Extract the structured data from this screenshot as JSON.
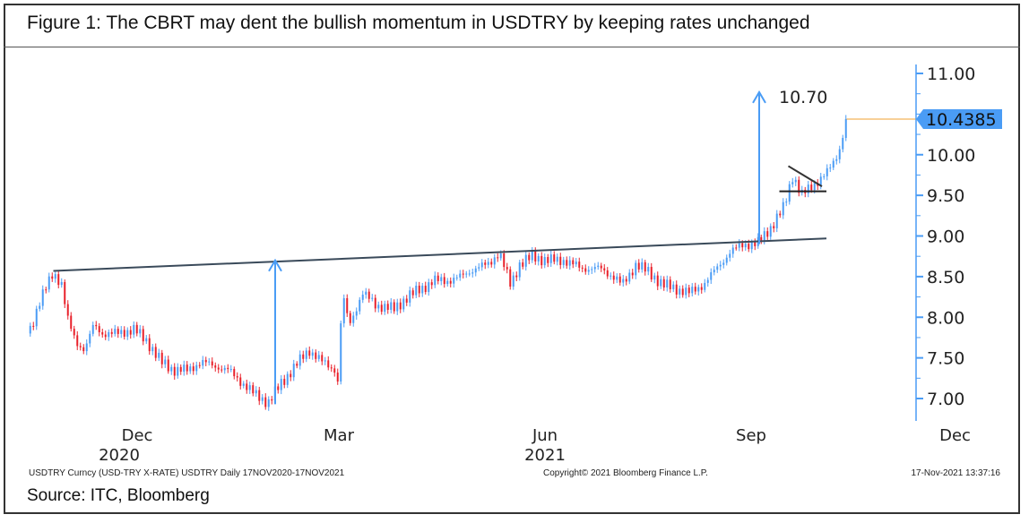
{
  "title": "Figure 1: The CBRT may dent the bullish momentum in USDTRY by keeping rates unchanged",
  "source": "Source: ITC, Bloomberg",
  "footer": {
    "left": "USDTRY Curncy (USD-TRY X-RATE) USDTRY  Daily 17NOV2020-17NOV2021",
    "center": "Copyright© 2021 Bloomberg Finance L.P.",
    "right": "17-Nov-2021 13:37:16"
  },
  "colors": {
    "up": "#4a9cf5",
    "down": "#e8202a",
    "axis": "#4a9cf5",
    "trend": "#3a4a5a",
    "last": "#f0a030",
    "badge": "#4a9cf5"
  },
  "chart_data": {
    "type": "candlestick",
    "title": "USDTRY daily",
    "xlabel": "",
    "ylabel": "",
    "ylim": [
      6.75,
      11.1
    ],
    "xlim_days": [
      0,
      365
    ],
    "y_ticks": [
      "7.00",
      "7.50",
      "8.00",
      "8.50",
      "9.00",
      "9.50",
      "10.00",
      "11.00"
    ],
    "y_tick_values": [
      7.0,
      7.5,
      8.0,
      8.5,
      9.0,
      9.5,
      10.0,
      11.0
    ],
    "x_ticks": [
      {
        "label": "Dec",
        "day": 14
      },
      {
        "label": "Mar",
        "day": 104
      },
      {
        "label": "Jun",
        "day": 196
      },
      {
        "label": "Sep",
        "day": 288
      },
      {
        "label": "Dec",
        "day": 379
      }
    ],
    "x_year_labels": [
      {
        "label": "2020",
        "day": 6
      },
      {
        "label": "2021",
        "day": 196
      }
    ],
    "last_price": 10.4385,
    "last_price_label": "10.4385",
    "target_label": "10.70",
    "series": [
      [
        0,
        7.8
      ],
      [
        5,
        8.2
      ],
      [
        11,
        8.55
      ],
      [
        15,
        8.4
      ],
      [
        17,
        8.0
      ],
      [
        21,
        7.7
      ],
      [
        25,
        7.6
      ],
      [
        29,
        7.9
      ],
      [
        33,
        7.8
      ],
      [
        39,
        7.8
      ],
      [
        47,
        7.85
      ],
      [
        53,
        7.7
      ],
      [
        59,
        7.45
      ],
      [
        65,
        7.35
      ],
      [
        71,
        7.35
      ],
      [
        77,
        7.45
      ],
      [
        83,
        7.4
      ],
      [
        89,
        7.35
      ],
      [
        95,
        7.2
      ],
      [
        101,
        7.05
      ],
      [
        107,
        6.95
      ],
      [
        113,
        7.2
      ],
      [
        119,
        7.4
      ],
      [
        125,
        7.6
      ],
      [
        131,
        7.45
      ],
      [
        137,
        7.35
      ],
      [
        138,
        7.2
      ],
      [
        140,
        8.3
      ],
      [
        143,
        7.9
      ],
      [
        149,
        8.3
      ],
      [
        155,
        8.15
      ],
      [
        163,
        8.1
      ],
      [
        169,
        8.25
      ],
      [
        175,
        8.35
      ],
      [
        181,
        8.45
      ],
      [
        187,
        8.45
      ],
      [
        193,
        8.5
      ],
      [
        199,
        8.6
      ],
      [
        205,
        8.65
      ],
      [
        210,
        8.8
      ],
      [
        215,
        8.4
      ],
      [
        219,
        8.65
      ],
      [
        225,
        8.75
      ],
      [
        231,
        8.7
      ],
      [
        239,
        8.7
      ],
      [
        247,
        8.6
      ],
      [
        255,
        8.6
      ],
      [
        261,
        8.5
      ],
      [
        265,
        8.4
      ],
      [
        271,
        8.65
      ],
      [
        277,
        8.55
      ],
      [
        283,
        8.4
      ],
      [
        289,
        8.35
      ],
      [
        295,
        8.3
      ],
      [
        301,
        8.4
      ],
      [
        307,
        8.6
      ],
      [
        313,
        8.8
      ],
      [
        319,
        8.9
      ],
      [
        325,
        8.9
      ],
      [
        331,
        9.1
      ],
      [
        337,
        9.35
      ],
      [
        341,
        9.75
      ],
      [
        345,
        9.5
      ],
      [
        349,
        9.6
      ],
      [
        353,
        9.7
      ],
      [
        357,
        9.8
      ],
      [
        361,
        10.0
      ],
      [
        364,
        10.3
      ],
      [
        365,
        10.4385
      ]
    ],
    "annotations": {
      "neckline": [
        [
          11,
          8.57
        ],
        [
          356,
          8.97
        ]
      ],
      "arrow1": [
        [
          110,
          6.93
        ],
        [
          110,
          8.7
        ]
      ],
      "arrow2": [
        [
          326,
          8.9
        ],
        [
          326,
          10.77
        ]
      ],
      "triangle_support": [
        [
          335,
          9.55
        ],
        [
          356,
          9.55
        ]
      ],
      "triangle_resistance": [
        [
          339,
          9.86
        ],
        [
          354,
          9.61
        ]
      ]
    }
  }
}
